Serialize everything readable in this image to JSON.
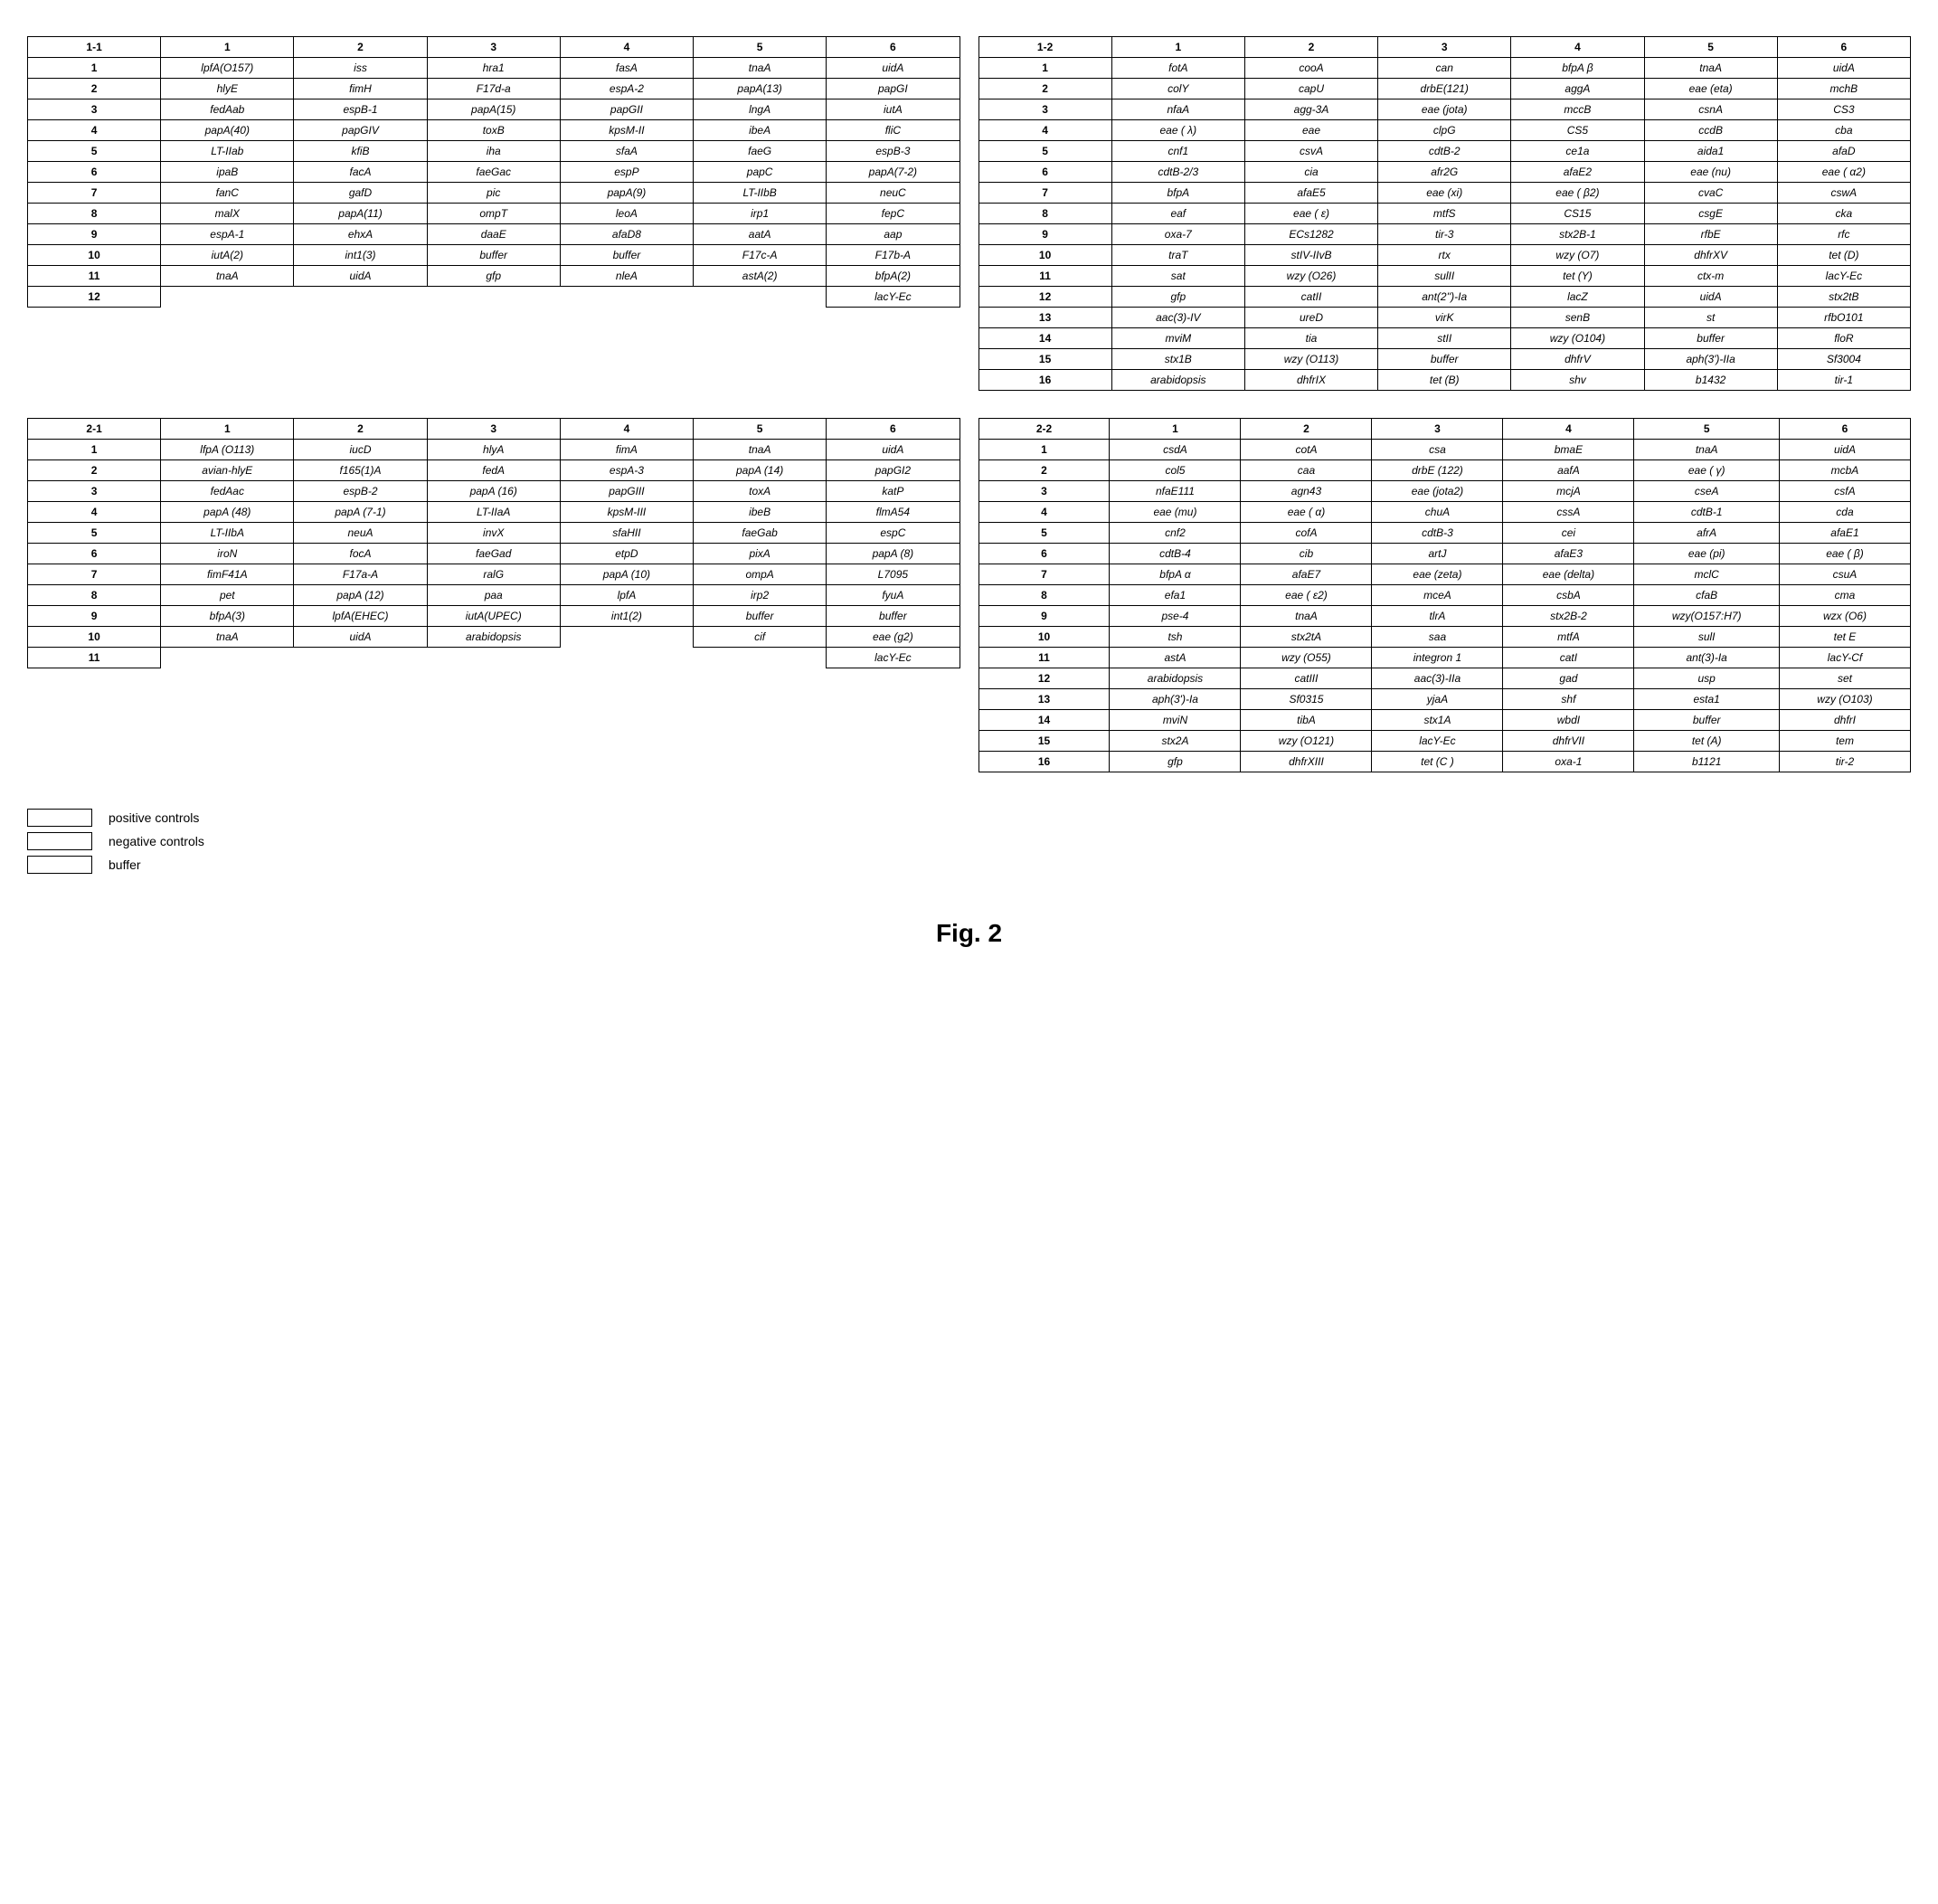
{
  "figure_caption": "Fig. 2",
  "legend": [
    {
      "label": "positive controls"
    },
    {
      "label": "negative controls"
    },
    {
      "label": "buffer"
    }
  ],
  "colors": {
    "border": "#000000",
    "background": "#ffffff",
    "text": "#000000"
  },
  "panels": [
    {
      "id": "1-1",
      "cols": [
        "1",
        "2",
        "3",
        "4",
        "5",
        "6"
      ],
      "rows": [
        {
          "n": "1",
          "c": [
            "lpfA(O157)",
            "iss",
            "hra1",
            "fasA",
            "tnaA",
            "uidA"
          ]
        },
        {
          "n": "2",
          "c": [
            "hlyE",
            "fimH",
            "F17d-a",
            "espA-2",
            "papA(13)",
            "papGI"
          ]
        },
        {
          "n": "3",
          "c": [
            "fedAab",
            "espB-1",
            "papA(15)",
            "papGII",
            "lngA",
            "iutA"
          ]
        },
        {
          "n": "4",
          "c": [
            "papA(40)",
            "papGIV",
            "toxB",
            "kpsM-II",
            "ibeA",
            "fliC"
          ]
        },
        {
          "n": "5",
          "c": [
            "LT-IIab",
            "kfiB",
            "iha",
            "sfaA",
            "faeG",
            "espB-3"
          ]
        },
        {
          "n": "6",
          "c": [
            "ipaB",
            "facA",
            "faeGac",
            "espP",
            "papC",
            "papA(7-2)"
          ]
        },
        {
          "n": "7",
          "c": [
            "fanC",
            "gafD",
            "pic",
            "papA(9)",
            "LT-IIbB",
            "neuC"
          ]
        },
        {
          "n": "8",
          "c": [
            "malX",
            "papA(11)",
            "ompT",
            "leoA",
            "irp1",
            "fepC"
          ]
        },
        {
          "n": "9",
          "c": [
            "espA-1",
            "ehxA",
            "daaE",
            "afaD8",
            "aatA",
            "aap"
          ]
        },
        {
          "n": "10",
          "c": [
            "iutA(2)",
            "int1(3)",
            "buffer",
            "buffer",
            "F17c-A",
            "F17b-A"
          ]
        },
        {
          "n": "11",
          "c": [
            "tnaA",
            "uidA",
            "gfp",
            "nleA",
            "astA(2)",
            "bfpA(2)"
          ]
        },
        {
          "n": "12",
          "c": [
            "",
            "",
            "",
            "",
            "",
            "lacY-Ec"
          ]
        }
      ]
    },
    {
      "id": "1-2",
      "cols": [
        "1",
        "2",
        "3",
        "4",
        "5",
        "6"
      ],
      "rows": [
        {
          "n": "1",
          "c": [
            "fotA",
            "cooA",
            "can",
            "bfpA β",
            "tnaA",
            "uidA"
          ]
        },
        {
          "n": "2",
          "c": [
            "colY",
            "capU",
            "drbE(121)",
            "aggA",
            "eae (eta)",
            "mchB"
          ]
        },
        {
          "n": "3",
          "c": [
            "nfaA",
            "agg-3A",
            "eae (jota)",
            "mccB",
            "csnA",
            "CS3"
          ]
        },
        {
          "n": "4",
          "c": [
            "eae ( λ)",
            "eae",
            "clpG",
            "CS5",
            "ccdB",
            "cba"
          ]
        },
        {
          "n": "5",
          "c": [
            "cnf1",
            "csvA",
            "cdtB-2",
            "ce1a",
            "aida1",
            "afaD"
          ]
        },
        {
          "n": "6",
          "c": [
            "cdtB-2/3",
            "cia",
            "afr2G",
            "afaE2",
            "eae (nu)",
            "eae ( α2)"
          ]
        },
        {
          "n": "7",
          "c": [
            "bfpA",
            "afaE5",
            "eae (xi)",
            "eae ( β2)",
            "cvaC",
            "cswA"
          ]
        },
        {
          "n": "8",
          "c": [
            "eaf",
            "eae ( ε)",
            "mtfS",
            "CS15",
            "csgE",
            "cka"
          ]
        },
        {
          "n": "9",
          "c": [
            "oxa-7",
            "ECs1282",
            "tir-3",
            "stx2B-1",
            "rfbE",
            "rfc"
          ]
        },
        {
          "n": "10",
          "c": [
            "traT",
            "stIV-IIvB",
            "rtx",
            "wzy (O7)",
            "dhfrXV",
            "tet (D)"
          ]
        },
        {
          "n": "11",
          "c": [
            "sat",
            "wzy (O26)",
            "sulII",
            "tet (Y)",
            "ctx-m",
            "lacY-Ec"
          ]
        },
        {
          "n": "12",
          "c": [
            "gfp",
            "catII",
            "ant(2'')-Ia",
            "lacZ",
            "uidA",
            "stx2tB"
          ]
        },
        {
          "n": "13",
          "c": [
            "aac(3)-IV",
            "ureD",
            "virK",
            "senB",
            "st",
            "rfbO101"
          ]
        },
        {
          "n": "14",
          "c": [
            "mviM",
            "tia",
            "stII",
            "wzy (O104)",
            "buffer",
            "floR"
          ]
        },
        {
          "n": "15",
          "c": [
            "stx1B",
            "wzy (O113)",
            "buffer",
            "dhfrV",
            "aph(3')-IIa",
            "Sf3004"
          ]
        },
        {
          "n": "16",
          "c": [
            "arabidopsis",
            "dhfrIX",
            "tet (B)",
            "shv",
            "b1432",
            "tir-1"
          ]
        }
      ]
    },
    {
      "id": "2-1",
      "cols": [
        "1",
        "2",
        "3",
        "4",
        "5",
        "6"
      ],
      "rows": [
        {
          "n": "1",
          "c": [
            "lfpA (O113)",
            "iucD",
            "hlyA",
            "fimA",
            "tnaA",
            "uidA"
          ]
        },
        {
          "n": "2",
          "c": [
            "avian-hlyE",
            "f165(1)A",
            "fedA",
            "espA-3",
            "papA (14)",
            "papGI2"
          ]
        },
        {
          "n": "3",
          "c": [
            "fedAac",
            "espB-2",
            "papA (16)",
            "papGIII",
            "toxA",
            "katP"
          ]
        },
        {
          "n": "4",
          "c": [
            "papA (48)",
            "papA (7-1)",
            "LT-IIaA",
            "kpsM-III",
            "ibeB",
            "flmA54"
          ]
        },
        {
          "n": "5",
          "c": [
            "LT-IIbA",
            "neuA",
            "invX",
            "sfaHII",
            "faeGab",
            "espC"
          ]
        },
        {
          "n": "6",
          "c": [
            "iroN",
            "focA",
            "faeGad",
            "etpD",
            "pixA",
            "papA (8)"
          ]
        },
        {
          "n": "7",
          "c": [
            "fimF41A",
            "F17a-A",
            "ralG",
            "papA (10)",
            "ompA",
            "L7095"
          ]
        },
        {
          "n": "8",
          "c": [
            "pet",
            "papA (12)",
            "paa",
            "lpfA",
            "irp2",
            "fyuA"
          ]
        },
        {
          "n": "9",
          "c": [
            "bfpA(3)",
            "lpfA(EHEC)",
            "iutA(UPEC)",
            "int1(2)",
            "buffer",
            "buffer"
          ]
        },
        {
          "n": "10",
          "c": [
            "tnaA",
            "uidA",
            "arabidopsis",
            "",
            "cif",
            "eae (g2)"
          ]
        },
        {
          "n": "11",
          "c": [
            "",
            "",
            "",
            "",
            "",
            "lacY-Ec"
          ]
        }
      ]
    },
    {
      "id": "2-2",
      "cols": [
        "1",
        "2",
        "3",
        "4",
        "5",
        "6"
      ],
      "rows": [
        {
          "n": "1",
          "c": [
            "csdA",
            "cotA",
            "csa",
            "bmaE",
            "tnaA",
            "uidA"
          ]
        },
        {
          "n": "2",
          "c": [
            "col5",
            "caa",
            "drbE (122)",
            "aafA",
            "eae ( γ)",
            "mcbA"
          ]
        },
        {
          "n": "3",
          "c": [
            "nfaE111",
            "agn43",
            "eae (jota2)",
            "mcjA",
            "cseA",
            "csfA"
          ]
        },
        {
          "n": "4",
          "c": [
            "eae (mu)",
            "eae ( α)",
            "chuA",
            "cssA",
            "cdtB-1",
            "cda"
          ]
        },
        {
          "n": "5",
          "c": [
            "cnf2",
            "cofA",
            "cdtB-3",
            "cei",
            "afrA",
            "afaE1"
          ]
        },
        {
          "n": "6",
          "c": [
            "cdtB-4",
            "cib",
            "artJ",
            "afaE3",
            "eae (pi)",
            "eae ( β)"
          ]
        },
        {
          "n": "7",
          "c": [
            "bfpA α",
            "afaE7",
            "eae (zeta)",
            "eae (delta)",
            "mclC",
            "csuA"
          ]
        },
        {
          "n": "8",
          "c": [
            "efa1",
            "eae ( ε2)",
            "mceA",
            "csbA",
            "cfaB",
            "cma"
          ]
        },
        {
          "n": "9",
          "c": [
            "pse-4",
            "tnaA",
            "tlrA",
            "stx2B-2",
            "wzy(O157:H7)",
            "wzx (O6)"
          ]
        },
        {
          "n": "10",
          "c": [
            "tsh",
            "stx2tA",
            "saa",
            "mtfA",
            "sulI",
            "tet E"
          ]
        },
        {
          "n": "11",
          "c": [
            "astA",
            "wzy (O55)",
            "integron 1",
            "catI",
            "ant(3)-Ia",
            "lacY-Cf"
          ]
        },
        {
          "n": "12",
          "c": [
            "arabidopsis",
            "catIII",
            "aac(3)-IIa",
            "gad",
            "usp",
            "set"
          ]
        },
        {
          "n": "13",
          "c": [
            "aph(3')-Ia",
            "Sf0315",
            "yjaA",
            "shf",
            "esta1",
            "wzy (O103)"
          ]
        },
        {
          "n": "14",
          "c": [
            "mviN",
            "tibA",
            "stx1A",
            "wbdI",
            "buffer",
            "dhfrI"
          ]
        },
        {
          "n": "15",
          "c": [
            "stx2A",
            "wzy (O121)",
            "lacY-Ec",
            "dhfrVII",
            "tet (A)",
            "tem"
          ]
        },
        {
          "n": "16",
          "c": [
            "gfp",
            "dhfrXIII",
            "tet (C )",
            "oxa-1",
            "b1121",
            "tir-2"
          ]
        }
      ]
    }
  ]
}
